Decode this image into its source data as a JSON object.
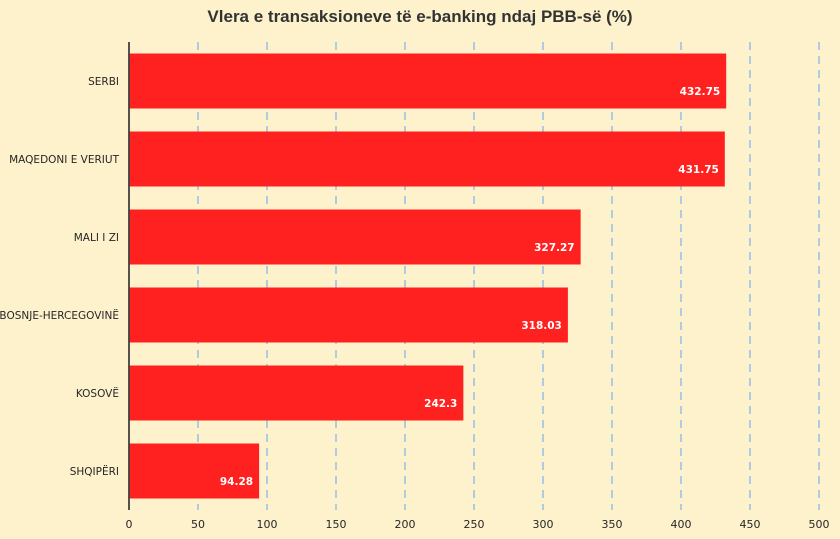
{
  "chart_data": {
    "type": "bar",
    "orientation": "horizontal",
    "title": "Vlera e transaksioneve të e-banking ndaj PBB-së (%)",
    "xlabel": "",
    "ylabel": "",
    "categories": [
      "SERBI",
      "MAQEDONI E VERIUT",
      "MALI I ZI",
      "BOSNJE-HERCEGOVINË",
      "KOSOVË",
      "SHQIPËRI"
    ],
    "values": [
      432.75,
      431.75,
      327.27,
      318.03,
      242.3,
      94.28
    ],
    "value_labels": [
      "432.75",
      "431.75",
      "327.27",
      "318.03",
      "242.3",
      "94.28"
    ],
    "xlim": [
      0,
      500
    ],
    "ticks": [
      "0",
      "50",
      "100",
      "150",
      "200",
      "250",
      "300",
      "350",
      "400",
      "450",
      "500"
    ],
    "grid": "vertical dashed",
    "legend": "none",
    "colors": {
      "bar": "#FF2020",
      "background": "#FEF2CC",
      "grid": "#9DC3E6",
      "axis": "#404040",
      "data_label": "#FFFFFF",
      "text": "#262626"
    }
  }
}
